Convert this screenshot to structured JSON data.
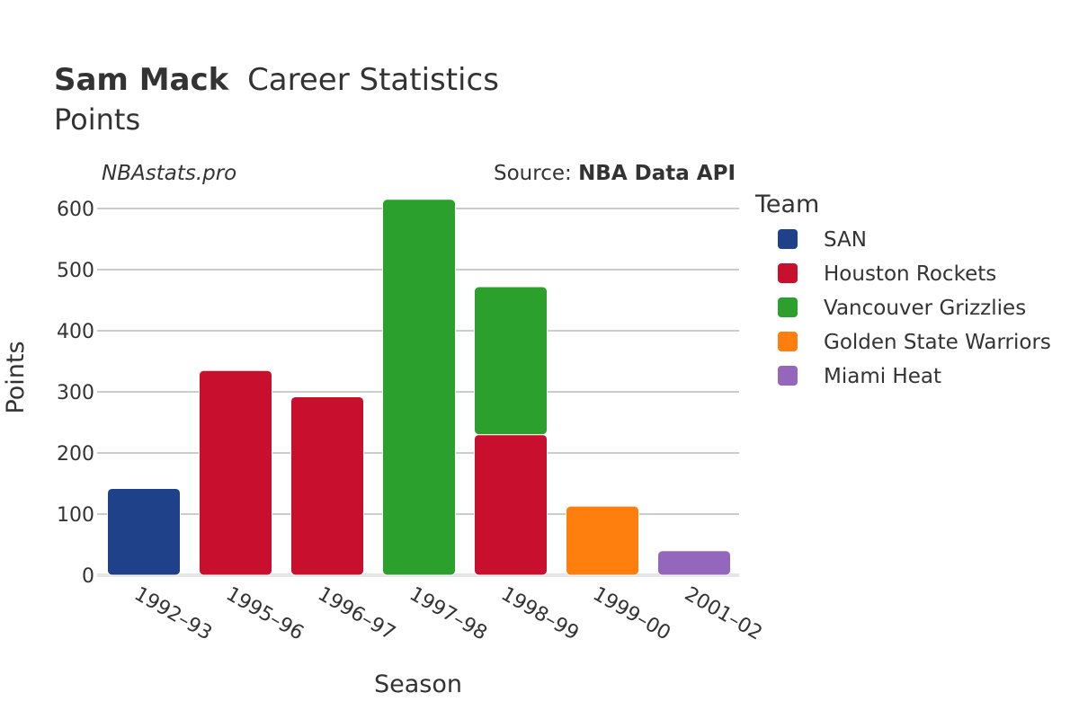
{
  "title": {
    "name": "Sam Mack",
    "suffix": "Career Statistics",
    "metric": "Points"
  },
  "watermark": "NBAstats.pro",
  "source": {
    "prefix": "Source: ",
    "name": "NBA Data API"
  },
  "colors": {
    "SAN": "#1f418a",
    "Houston Rockets": "#c8102e",
    "Vancouver Grizzlies": "#2ca02c",
    "Golden State Warriors": "#ff7f0e",
    "Miami Heat": "#9467bd",
    "grid": "#999999",
    "text": "#333333"
  },
  "chart_data": {
    "type": "bar",
    "stacked": true,
    "title": "Sam Mack Career Statistics Points",
    "xlabel": "Season",
    "ylabel": "Points",
    "ylim": [
      0,
      640
    ],
    "yticks": [
      0,
      100,
      200,
      300,
      400,
      500,
      600
    ],
    "categories": [
      "1992–93",
      "1995–96",
      "1996–97",
      "1997–98",
      "1998–99",
      "1999–00",
      "2001–02"
    ],
    "legend_title": "Team",
    "legend_position": "right",
    "series": [
      {
        "name": "SAN",
        "values": [
          142,
          0,
          0,
          0,
          0,
          0,
          0
        ]
      },
      {
        "name": "Houston Rockets",
        "values": [
          0,
          335,
          292,
          0,
          230,
          0,
          0
        ]
      },
      {
        "name": "Vancouver Grizzlies",
        "values": [
          0,
          0,
          0,
          615,
          242,
          0,
          0
        ]
      },
      {
        "name": "Golden State Warriors",
        "values": [
          0,
          0,
          0,
          0,
          0,
          113,
          0
        ]
      },
      {
        "name": "Miami Heat",
        "values": [
          0,
          0,
          0,
          0,
          0,
          0,
          40
        ]
      }
    ]
  }
}
